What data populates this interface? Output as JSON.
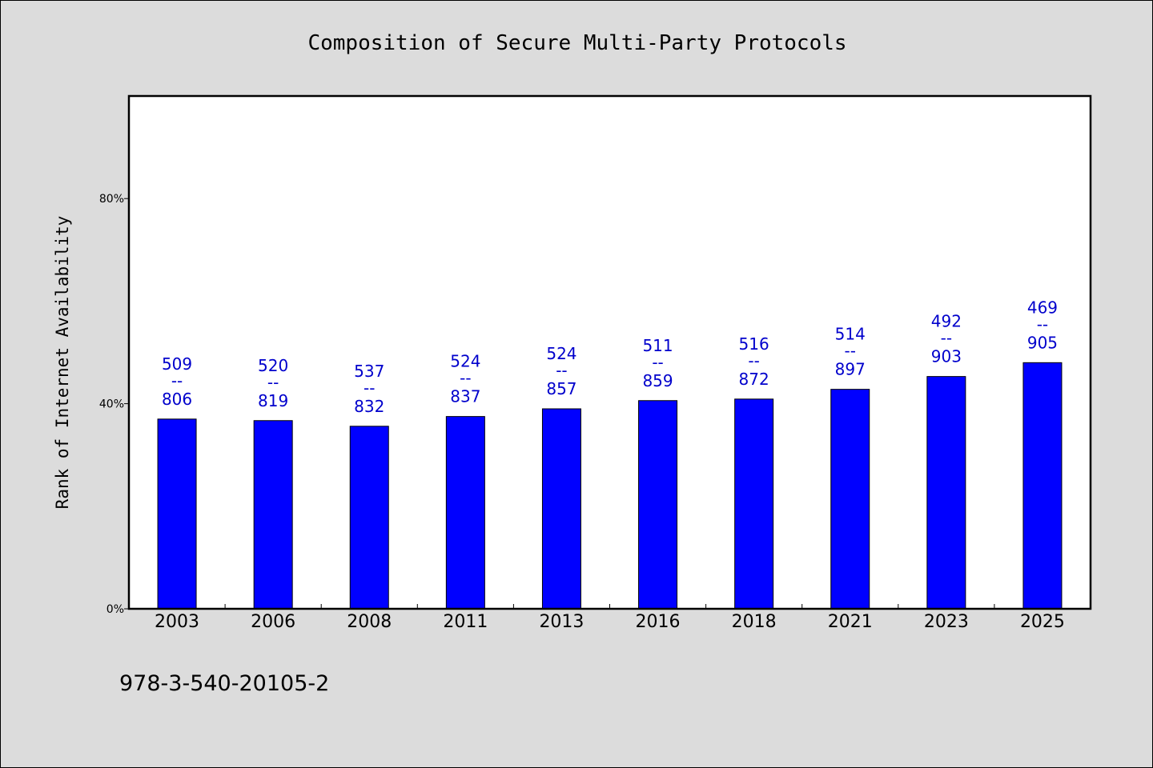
{
  "chart_data": {
    "type": "bar",
    "title": "Composition of Secure Multi-Party Protocols",
    "xlabel": "",
    "ylabel": "Rank of Internet Availability",
    "categories": [
      "2003",
      "2006",
      "2008",
      "2011",
      "2013",
      "2016",
      "2018",
      "2021",
      "2023",
      "2025"
    ],
    "series": [
      {
        "values": [
          37.0,
          36.7,
          35.6,
          37.5,
          39.0,
          40.6,
          40.9,
          42.8,
          45.3,
          48.0
        ]
      }
    ],
    "bar_labels": [
      {
        "top": "509",
        "sep": "--",
        "bottom": "806"
      },
      {
        "top": "520",
        "sep": "--",
        "bottom": "819"
      },
      {
        "top": "537",
        "sep": "--",
        "bottom": "832"
      },
      {
        "top": "524",
        "sep": "--",
        "bottom": "837"
      },
      {
        "top": "524",
        "sep": "--",
        "bottom": "857"
      },
      {
        "top": "511",
        "sep": "--",
        "bottom": "859"
      },
      {
        "top": "516",
        "sep": "--",
        "bottom": "872"
      },
      {
        "top": "514",
        "sep": "--",
        "bottom": "897"
      },
      {
        "top": "492",
        "sep": "--",
        "bottom": "903"
      },
      {
        "top": "469",
        "sep": "--",
        "bottom": "905"
      }
    ],
    "yticks": [
      0,
      40,
      80
    ],
    "ytick_labels": [
      "0%",
      "40%",
      "80%"
    ],
    "ylim": [
      0,
      100
    ],
    "grid": false,
    "legend": "none",
    "bar_color": "#0000ff",
    "label_color": "#0000cc",
    "plot_background": "#ffffff",
    "figure_background": "#dcdcdc",
    "footnote": "978-3-540-20105-2"
  }
}
